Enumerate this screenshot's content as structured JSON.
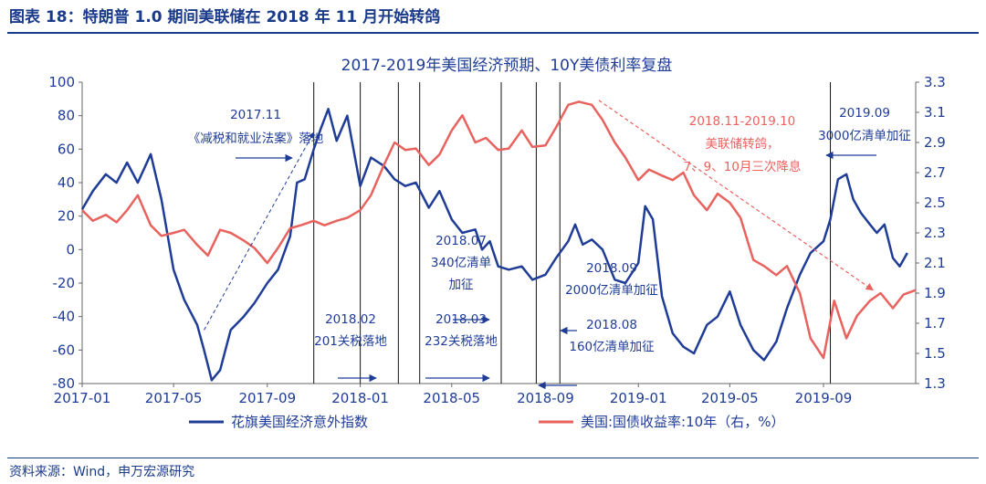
{
  "figure": {
    "title": "图表 18：特朗普 1.0 期间美联储在 2018 年 11 月开始转鸽",
    "source": "资料来源：Wind，申万宏源研究"
  },
  "chart_data": {
    "type": "line",
    "title": "2017-2019年美国经济预期、10Y美债利率复盘",
    "x_axis": {
      "type": "time",
      "range": [
        "2017-01",
        "2019-12"
      ],
      "tick_labels": [
        "2017-01",
        "2017-05",
        "2017-09",
        "2018-01",
        "2018-05",
        "2018-09",
        "2019-01",
        "2019-05",
        "2019-09"
      ]
    },
    "y_left": {
      "range": [
        -80,
        100
      ],
      "tick_labels": [
        "100",
        "80",
        "60",
        "40",
        "20",
        "0",
        "-20",
        "-40",
        "-60",
        "-80"
      ]
    },
    "y_right": {
      "range": [
        1.3,
        3.3
      ],
      "tick_labels": [
        "3.3",
        "3.1",
        "2.9",
        "2.7",
        "2.5",
        "2.3",
        "2.1",
        "1.9",
        "1.7",
        "1.5",
        "1.3"
      ]
    },
    "series": [
      {
        "name": "花旗美国经济意外指数",
        "axis": "left",
        "color": "#1f3c96",
        "points": [
          [
            "2017-01-01",
            24
          ],
          [
            "2017-01-15",
            35
          ],
          [
            "2017-02-01",
            45
          ],
          [
            "2017-02-15",
            40
          ],
          [
            "2017-03-01",
            52
          ],
          [
            "2017-03-15",
            40
          ],
          [
            "2017-04-01",
            57
          ],
          [
            "2017-04-15",
            30
          ],
          [
            "2017-05-01",
            -12
          ],
          [
            "2017-05-15",
            -30
          ],
          [
            "2017-06-01",
            -45
          ],
          [
            "2017-06-10",
            -60
          ],
          [
            "2017-06-20",
            -78
          ],
          [
            "2017-07-01",
            -72
          ],
          [
            "2017-07-15",
            -48
          ],
          [
            "2017-08-01",
            -40
          ],
          [
            "2017-08-15",
            -32
          ],
          [
            "2017-09-01",
            -20
          ],
          [
            "2017-09-15",
            -12
          ],
          [
            "2017-10-01",
            8
          ],
          [
            "2017-10-10",
            40
          ],
          [
            "2017-10-20",
            42
          ],
          [
            "2017-11-01",
            60
          ],
          [
            "2017-11-10",
            72
          ],
          [
            "2017-11-20",
            84
          ],
          [
            "2017-12-01",
            65
          ],
          [
            "2017-12-15",
            80
          ],
          [
            "2018-01-01",
            38
          ],
          [
            "2018-01-15",
            55
          ],
          [
            "2018-02-01",
            50
          ],
          [
            "2018-02-15",
            42
          ],
          [
            "2018-03-01",
            38
          ],
          [
            "2018-03-15",
            40
          ],
          [
            "2018-04-01",
            25
          ],
          [
            "2018-04-15",
            35
          ],
          [
            "2018-05-01",
            18
          ],
          [
            "2018-05-15",
            10
          ],
          [
            "2018-06-01",
            12
          ],
          [
            "2018-06-10",
            0
          ],
          [
            "2018-06-20",
            5
          ],
          [
            "2018-07-01",
            -10
          ],
          [
            "2018-07-15",
            -12
          ],
          [
            "2018-08-01",
            -10
          ],
          [
            "2018-08-15",
            -18
          ],
          [
            "2018-09-01",
            -15
          ],
          [
            "2018-09-15",
            -5
          ],
          [
            "2018-10-01",
            5
          ],
          [
            "2018-10-10",
            15
          ],
          [
            "2018-10-20",
            3
          ],
          [
            "2018-11-01",
            6
          ],
          [
            "2018-11-15",
            0
          ],
          [
            "2018-12-01",
            -18
          ],
          [
            "2018-12-15",
            -20
          ],
          [
            "2019-01-01",
            -8
          ],
          [
            "2019-01-10",
            26
          ],
          [
            "2019-01-20",
            18
          ],
          [
            "2019-02-01",
            -28
          ],
          [
            "2019-02-15",
            -50
          ],
          [
            "2019-03-01",
            -58
          ],
          [
            "2019-03-15",
            -62
          ],
          [
            "2019-04-01",
            -45
          ],
          [
            "2019-04-15",
            -40
          ],
          [
            "2019-05-01",
            -25
          ],
          [
            "2019-05-15",
            -45
          ],
          [
            "2019-06-01",
            -60
          ],
          [
            "2019-06-15",
            -66
          ],
          [
            "2019-07-01",
            -55
          ],
          [
            "2019-07-15",
            -35
          ],
          [
            "2019-08-01",
            -15
          ],
          [
            "2019-08-15",
            -2
          ],
          [
            "2019-09-01",
            5
          ],
          [
            "2019-09-10",
            18
          ],
          [
            "2019-09-20",
            42
          ],
          [
            "2019-10-01",
            45
          ],
          [
            "2019-10-10",
            30
          ],
          [
            "2019-10-20",
            22
          ],
          [
            "2019-11-01",
            15
          ],
          [
            "2019-11-10",
            10
          ],
          [
            "2019-11-20",
            15
          ],
          [
            "2019-12-01",
            -5
          ],
          [
            "2019-12-10",
            -10
          ],
          [
            "2019-12-20",
            -2
          ]
        ]
      },
      {
        "name": "美国:国债收益率:10年（右，%）",
        "axis": "right",
        "color": "#e8625e",
        "points": [
          [
            "2017-01-01",
            2.45
          ],
          [
            "2017-01-15",
            2.38
          ],
          [
            "2017-02-01",
            2.42
          ],
          [
            "2017-02-15",
            2.37
          ],
          [
            "2017-03-01",
            2.45
          ],
          [
            "2017-03-15",
            2.55
          ],
          [
            "2017-04-01",
            2.35
          ],
          [
            "2017-04-15",
            2.28
          ],
          [
            "2017-05-01",
            2.3
          ],
          [
            "2017-05-15",
            2.32
          ],
          [
            "2017-06-01",
            2.22
          ],
          [
            "2017-06-15",
            2.15
          ],
          [
            "2017-07-01",
            2.32
          ],
          [
            "2017-07-15",
            2.3
          ],
          [
            "2017-08-01",
            2.25
          ],
          [
            "2017-08-15",
            2.2
          ],
          [
            "2017-09-01",
            2.1
          ],
          [
            "2017-09-15",
            2.2
          ],
          [
            "2017-10-01",
            2.33
          ],
          [
            "2017-10-15",
            2.35
          ],
          [
            "2017-11-01",
            2.38
          ],
          [
            "2017-11-15",
            2.35
          ],
          [
            "2017-12-01",
            2.38
          ],
          [
            "2017-12-15",
            2.4
          ],
          [
            "2018-01-01",
            2.45
          ],
          [
            "2018-01-15",
            2.55
          ],
          [
            "2018-02-01",
            2.75
          ],
          [
            "2018-02-15",
            2.9
          ],
          [
            "2018-03-01",
            2.85
          ],
          [
            "2018-03-15",
            2.86
          ],
          [
            "2018-04-01",
            2.75
          ],
          [
            "2018-04-15",
            2.82
          ],
          [
            "2018-05-01",
            2.98
          ],
          [
            "2018-05-15",
            3.08
          ],
          [
            "2018-06-01",
            2.9
          ],
          [
            "2018-06-15",
            2.93
          ],
          [
            "2018-07-01",
            2.85
          ],
          [
            "2018-07-15",
            2.86
          ],
          [
            "2018-08-01",
            2.98
          ],
          [
            "2018-08-15",
            2.87
          ],
          [
            "2018-09-01",
            2.88
          ],
          [
            "2018-09-15",
            3.0
          ],
          [
            "2018-10-01",
            3.15
          ],
          [
            "2018-10-15",
            3.17
          ],
          [
            "2018-11-01",
            3.15
          ],
          [
            "2018-11-15",
            3.05
          ],
          [
            "2018-12-01",
            2.9
          ],
          [
            "2018-12-15",
            2.8
          ],
          [
            "2019-01-01",
            2.65
          ],
          [
            "2019-01-15",
            2.72
          ],
          [
            "2019-02-01",
            2.68
          ],
          [
            "2019-02-15",
            2.65
          ],
          [
            "2019-03-01",
            2.7
          ],
          [
            "2019-03-15",
            2.55
          ],
          [
            "2019-04-01",
            2.45
          ],
          [
            "2019-04-15",
            2.56
          ],
          [
            "2019-05-01",
            2.5
          ],
          [
            "2019-05-15",
            2.4
          ],
          [
            "2019-06-01",
            2.12
          ],
          [
            "2019-06-15",
            2.08
          ],
          [
            "2019-07-01",
            2.02
          ],
          [
            "2019-07-15",
            2.08
          ],
          [
            "2019-08-01",
            1.9
          ],
          [
            "2019-08-15",
            1.6
          ],
          [
            "2019-09-01",
            1.47
          ],
          [
            "2019-09-15",
            1.85
          ],
          [
            "2019-10-01",
            1.6
          ],
          [
            "2019-10-15",
            1.75
          ],
          [
            "2019-11-01",
            1.85
          ],
          [
            "2019-11-15",
            1.9
          ],
          [
            "2019-12-01",
            1.8
          ],
          [
            "2019-12-15",
            1.89
          ],
          [
            "2019-12-31",
            1.92
          ]
        ]
      }
    ],
    "event_lines": [
      "2017-11-01",
      "2018-01-01",
      "2018-02-20",
      "2018-03-20",
      "2018-07-05",
      "2018-08-20",
      "2018-09-20",
      "2019-09-10"
    ],
    "annotations": [
      {
        "lines": [
          "2017.11",
          "《减税和就业法案》落地"
        ],
        "color": "#1f3c96"
      },
      {
        "lines": [
          "2018.02",
          "201关税落地"
        ],
        "color": "#1f3c96"
      },
      {
        "lines": [
          "2018.03",
          "232关税落地"
        ],
        "color": "#1f3c96"
      },
      {
        "lines": [
          "2018.07",
          "340亿清单",
          "加征"
        ],
        "color": "#1f3c96"
      },
      {
        "lines": [
          "2018.09",
          "2000亿清单加征"
        ],
        "color": "#1f3c96"
      },
      {
        "lines": [
          "2018.08",
          "160亿清单加征"
        ],
        "color": "#1f3c96"
      },
      {
        "lines": [
          "2018.11-2019.10",
          "美联储转鸽，",
          "7、9、10月三次降息"
        ],
        "color": "#e8625e"
      },
      {
        "lines": [
          "2019.09",
          "3000亿清单加征"
        ],
        "color": "#1f3c96"
      }
    ],
    "legend_position": "bottom",
    "grid": false
  }
}
